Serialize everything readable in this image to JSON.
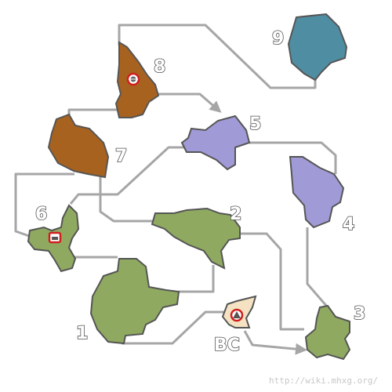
{
  "colors": {
    "green_area": "#8faa60",
    "brown_area": "#a8621f",
    "purple_area": "#a09ad6",
    "blue_area": "#4f8da3",
    "camp_area": "#f4e2c2",
    "path": "#a6a6a6",
    "outline": "#555555",
    "marker": "#d11f1f"
  },
  "areas": [
    {
      "id": "1",
      "label": "1",
      "color": "green"
    },
    {
      "id": "2",
      "label": "2",
      "color": "green"
    },
    {
      "id": "3",
      "label": "3",
      "color": "green"
    },
    {
      "id": "4",
      "label": "4",
      "color": "purple"
    },
    {
      "id": "5",
      "label": "5",
      "color": "purple"
    },
    {
      "id": "6",
      "label": "6",
      "color": "green"
    },
    {
      "id": "7",
      "label": "7",
      "color": "brown"
    },
    {
      "id": "8",
      "label": "8",
      "color": "brown"
    },
    {
      "id": "9",
      "label": "9",
      "color": "blue"
    },
    {
      "id": "BC",
      "label": "BC",
      "color": "camp"
    }
  ],
  "markers": [
    {
      "area": "8",
      "icon": "target-icon"
    },
    {
      "area": "6",
      "icon": "supply-box-icon"
    },
    {
      "area": "BC",
      "icon": "camp-icon"
    }
  ],
  "watermark": "http://wiki.mhxg.org/"
}
